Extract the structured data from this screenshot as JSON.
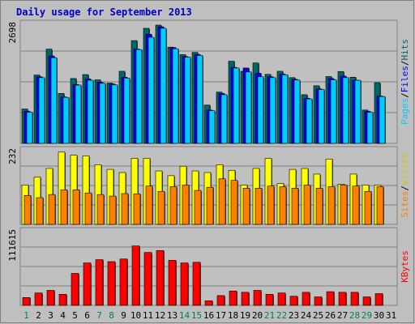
{
  "chart_data": [
    {
      "type": "bar",
      "title": "Daily usage for September 2013",
      "categories": [
        "1",
        "2",
        "3",
        "4",
        "5",
        "6",
        "7",
        "8",
        "9",
        "10",
        "11",
        "12",
        "13",
        "14",
        "15",
        "16",
        "17",
        "18",
        "19",
        "20",
        "21",
        "22",
        "23",
        "24",
        "25",
        "26",
        "27",
        "28",
        "29",
        "30",
        "31"
      ],
      "weekend_days": [
        "1",
        "7",
        "8",
        "14",
        "15",
        "21",
        "22",
        "28",
        "29"
      ],
      "ymax_label": "2698",
      "ymax": 2698,
      "axis_labels": [
        "Pages",
        "/",
        "Files",
        "/",
        "Hits"
      ],
      "series": [
        {
          "name": "Hits",
          "color": "#006666",
          "values": [
            785,
            1560,
            2150,
            1140,
            1480,
            1570,
            1450,
            1375,
            1645,
            2345,
            2625,
            2698,
            2195,
            2025,
            2075,
            875,
            1170,
            1875,
            1645,
            1835,
            1575,
            1645,
            1500,
            1110,
            1315,
            1525,
            1640,
            1510,
            760,
            1385,
            0
          ]
        },
        {
          "name": "Files",
          "color": "#0000ff",
          "values": [
            735,
            1520,
            1995,
            1060,
            1345,
            1470,
            1395,
            1355,
            1510,
            2150,
            2490,
            2660,
            2185,
            1980,
            2030,
            760,
            1140,
            1735,
            1720,
            1600,
            1520,
            1580,
            1460,
            1030,
            1245,
            1480,
            1535,
            1440,
            730,
            1080,
            0
          ]
        },
        {
          "name": "Pages",
          "color": "#00ccff",
          "values": [
            710,
            1500,
            1955,
            1050,
            1330,
            1440,
            1370,
            1335,
            1490,
            2140,
            2420,
            2625,
            2160,
            1965,
            2005,
            745,
            1110,
            1720,
            1630,
            1520,
            1500,
            1565,
            1445,
            1015,
            1230,
            1450,
            1500,
            1440,
            710,
            1070,
            0
          ]
        }
      ]
    },
    {
      "type": "bar",
      "ymax_label": "232",
      "ymax": 232,
      "axis_labels": [
        "Sites",
        "/",
        "Visits"
      ],
      "series": [
        {
          "name": "Visits",
          "color": "#ffff00",
          "values": [
            125,
            150,
            178,
            230,
            220,
            218,
            190,
            175,
            165,
            210,
            210,
            170,
            155,
            185,
            170,
            165,
            190,
            172,
            125,
            178,
            210,
            130,
            175,
            178,
            160,
            208,
            128,
            160,
            125,
            125,
            0
          ]
        },
        {
          "name": "Sites",
          "color": "#ff8000",
          "values": [
            92,
            85,
            95,
            110,
            110,
            100,
            95,
            90,
            98,
            97,
            122,
            105,
            120,
            125,
            108,
            118,
            145,
            140,
            115,
            115,
            122,
            120,
            115,
            125,
            115,
            120,
            125,
            122,
            105,
            120,
            0
          ]
        }
      ]
    },
    {
      "type": "bar",
      "ymax_label": "111615",
      "ymax": 111615,
      "axis_labels": [
        "KBytes"
      ],
      "series": [
        {
          "name": "KBytes",
          "color": "#ff0000",
          "values": [
            12000,
            19000,
            23000,
            17000,
            49000,
            65000,
            70000,
            67000,
            71000,
            91000,
            81000,
            84000,
            69000,
            65000,
            66000,
            7000,
            15000,
            22000,
            20000,
            23000,
            17000,
            19000,
            14000,
            20000,
            13000,
            21000,
            20000,
            20000,
            13000,
            18000,
            0
          ]
        }
      ]
    }
  ]
}
